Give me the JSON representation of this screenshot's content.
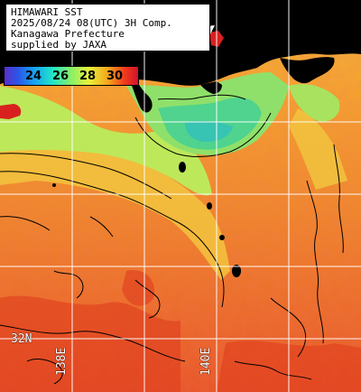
{
  "title_lines": [
    "HIMAWARI SST",
    "2025/08/24 08(UTC) 3H Comp.",
    "Kanagawa Prefecture",
    "supplied by JAXA"
  ],
  "legend": {
    "ticks": [
      "24",
      "26",
      "28",
      "30"
    ],
    "colors": [
      "#5a2fcb",
      "#2b55e6",
      "#16a2f4",
      "#22e5c7",
      "#8af067",
      "#e8f23a",
      "#f5a21c",
      "#f03a1d",
      "#d4122a"
    ]
  },
  "grid_labels": {
    "lat": "32N",
    "lon_1": "138E",
    "lon_2": "140E"
  },
  "colors": {
    "land": "#000000",
    "warm_sea": "#ee6a2a",
    "cool_sea": "#8fe06a",
    "grid": "#ffffff",
    "contour": "#000000"
  }
}
